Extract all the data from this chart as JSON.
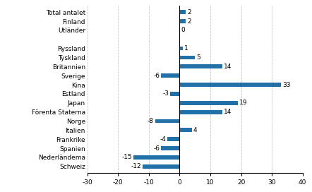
{
  "categories": [
    "Schweiz",
    "Nederländema",
    "Spanien",
    "Frankrike",
    "Italien",
    "Norge",
    "Förenta Staterna",
    "Japan",
    "Estland",
    "Kina",
    "Sverige",
    "Britannien",
    "Tyskland",
    "Ryssland",
    "",
    "Utländer",
    "Finland",
    "Total antalet"
  ],
  "values": [
    -12,
    -15,
    -6,
    -4,
    4,
    -8,
    14,
    19,
    -3,
    33,
    -6,
    14,
    5,
    1,
    null,
    0,
    2,
    2
  ],
  "bar_color": "#2171a8",
  "xlim": [
    -30,
    40
  ],
  "xticks": [
    -30,
    -20,
    -10,
    0,
    10,
    20,
    30,
    40
  ],
  "grid_color": "#c8c8c8",
  "background_color": "#ffffff",
  "label_fontsize": 6.5,
  "tick_fontsize": 6.5,
  "bar_height": 0.45
}
